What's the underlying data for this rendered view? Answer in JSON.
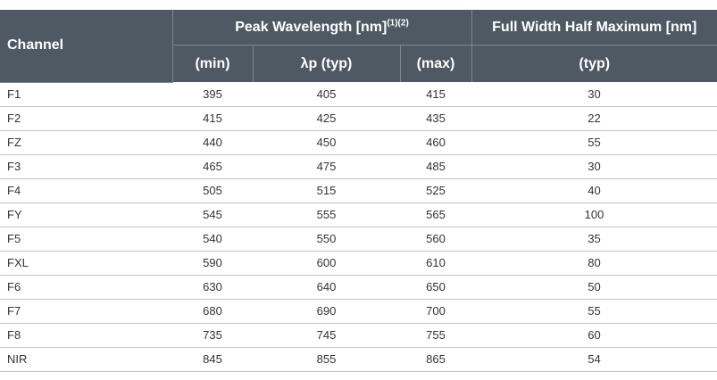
{
  "table": {
    "headers": {
      "channel": "Channel",
      "peak_group": "Peak Wavelength [nm]",
      "peak_group_sup": "(1)(2)",
      "fwhm_group": "Full Width Half Maximum [nm]",
      "sub": [
        "(min)",
        "λp (typ)",
        "(max)",
        "(typ)"
      ]
    },
    "rows": [
      {
        "channel": "F1",
        "min": "395",
        "typ": "405",
        "max": "415",
        "fwhm": "30"
      },
      {
        "channel": "F2",
        "min": "415",
        "typ": "425",
        "max": "435",
        "fwhm": "22"
      },
      {
        "channel": "FZ",
        "min": "440",
        "typ": "450",
        "max": "460",
        "fwhm": "55"
      },
      {
        "channel": "F3",
        "min": "465",
        "typ": "475",
        "max": "485",
        "fwhm": "30"
      },
      {
        "channel": "F4",
        "min": "505",
        "typ": "515",
        "max": "525",
        "fwhm": "40"
      },
      {
        "channel": "FY",
        "min": "545",
        "typ": "555",
        "max": "565",
        "fwhm": "100"
      },
      {
        "channel": "F5",
        "min": "540",
        "typ": "550",
        "max": "560",
        "fwhm": "35"
      },
      {
        "channel": "FXL",
        "min": "590",
        "typ": "600",
        "max": "610",
        "fwhm": "80"
      },
      {
        "channel": "F6",
        "min": "630",
        "typ": "640",
        "max": "650",
        "fwhm": "50"
      },
      {
        "channel": "F7",
        "min": "680",
        "typ": "690",
        "max": "700",
        "fwhm": "55"
      },
      {
        "channel": "F8",
        "min": "735",
        "typ": "745",
        "max": "755",
        "fwhm": "60"
      },
      {
        "channel": "NIR",
        "min": "845",
        "typ": "855",
        "max": "865",
        "fwhm": "54"
      }
    ]
  },
  "colors": {
    "header_bg": "#4e5963",
    "header_text": "#ffffff",
    "row_divider": "#bfc4c8",
    "body_text": "#333333"
  }
}
